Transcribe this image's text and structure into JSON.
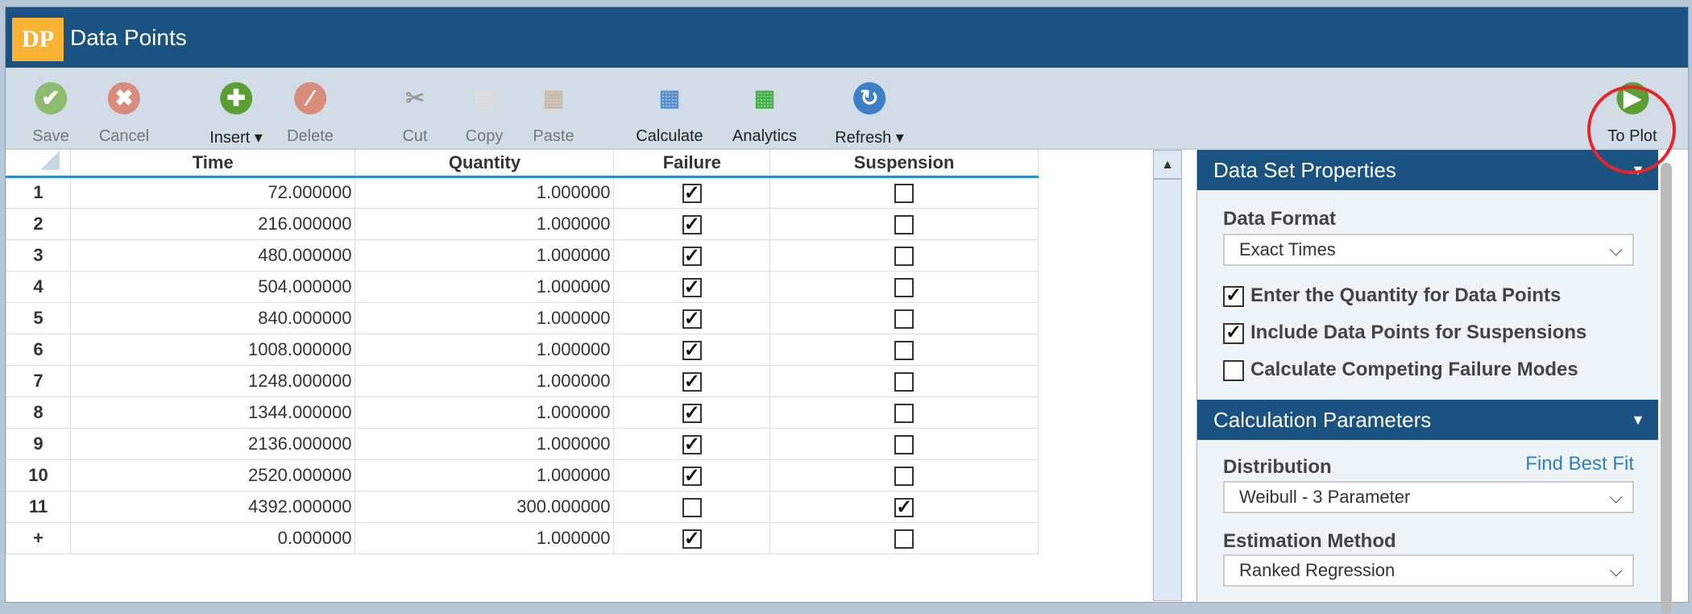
{
  "window": {
    "logo": "DP",
    "title": "Data Points"
  },
  "toolbar": [
    {
      "id": "save",
      "label": "Save",
      "icon": "check-circle-icon",
      "color": "#8dbb6e",
      "disabled": true,
      "glyph": "✔"
    },
    {
      "id": "cancel",
      "label": "Cancel",
      "icon": "x-circle-icon",
      "color": "#d98b7c",
      "disabled": true,
      "glyph": "✖"
    },
    {
      "id": "insert",
      "label": "Insert ▾",
      "icon": "plus-circle-icon",
      "color": "#5a9e34",
      "disabled": false,
      "glyph": "✚"
    },
    {
      "id": "delete",
      "label": "Delete",
      "icon": "minus-circle-icon",
      "color": "#d98b7c",
      "disabled": true,
      "glyph": "⁄"
    },
    {
      "id": "cut",
      "label": "Cut",
      "icon": "scissors-icon",
      "color": "#999",
      "disabled": true,
      "glyph": "✂"
    },
    {
      "id": "copy",
      "label": "Copy",
      "icon": "copy-icon",
      "color": "#ddd",
      "disabled": true,
      "glyph": "▤"
    },
    {
      "id": "paste",
      "label": "Paste",
      "icon": "clipboard-icon",
      "color": "#c9b9a8",
      "disabled": true,
      "glyph": "▦"
    },
    {
      "id": "calculate",
      "label": "Calculate",
      "icon": "calculator-icon",
      "color": "#5b8fc9",
      "disabled": false,
      "glyph": "▦"
    },
    {
      "id": "analytics",
      "label": "Analytics",
      "icon": "analytics-calculator-icon",
      "color": "#47b04b",
      "disabled": false,
      "glyph": "▦"
    },
    {
      "id": "refresh",
      "label": "Refresh ▾",
      "icon": "refresh-icon",
      "color": "#3d7fc4",
      "disabled": false,
      "glyph": "↻"
    },
    {
      "id": "to-plot",
      "label": "To Plot",
      "icon": "play-circle-icon",
      "color": "#5a9e34",
      "disabled": false,
      "glyph": "▶"
    }
  ],
  "table": {
    "columns": [
      "Time",
      "Quantity",
      "Failure",
      "Suspension"
    ],
    "rows": [
      {
        "n": "1",
        "time": "72.000000",
        "qty": "1.000000",
        "failure": true,
        "susp": false
      },
      {
        "n": "2",
        "time": "216.000000",
        "qty": "1.000000",
        "failure": true,
        "susp": false
      },
      {
        "n": "3",
        "time": "480.000000",
        "qty": "1.000000",
        "failure": true,
        "susp": false
      },
      {
        "n": "4",
        "time": "504.000000",
        "qty": "1.000000",
        "failure": true,
        "susp": false
      },
      {
        "n": "5",
        "time": "840.000000",
        "qty": "1.000000",
        "failure": true,
        "susp": false
      },
      {
        "n": "6",
        "time": "1008.000000",
        "qty": "1.000000",
        "failure": true,
        "susp": false
      },
      {
        "n": "7",
        "time": "1248.000000",
        "qty": "1.000000",
        "failure": true,
        "susp": false
      },
      {
        "n": "8",
        "time": "1344.000000",
        "qty": "1.000000",
        "failure": true,
        "susp": false
      },
      {
        "n": "9",
        "time": "2136.000000",
        "qty": "1.000000",
        "failure": true,
        "susp": false
      },
      {
        "n": "10",
        "time": "2520.000000",
        "qty": "1.000000",
        "failure": true,
        "susp": false
      },
      {
        "n": "11",
        "time": "4392.000000",
        "qty": "300.000000",
        "failure": false,
        "susp": true
      },
      {
        "n": "+",
        "time": "0.000000",
        "qty": "1.000000",
        "failure": true,
        "susp": false
      }
    ]
  },
  "panel": {
    "dsp_title": "Data Set Properties",
    "data_format_label": "Data Format",
    "data_format_value": "Exact Times",
    "opt1": "Enter the Quantity for Data Points",
    "opt1_checked": true,
    "opt2": "Include Data Points for Suspensions",
    "opt2_checked": true,
    "opt3": "Calculate Competing Failure Modes",
    "opt3_checked": false,
    "cp_title": "Calculation Parameters",
    "distribution_label": "Distribution",
    "find_best_fit": "Find Best Fit",
    "distribution_value": "Weibull - 3 Parameter",
    "estimation_label": "Estimation Method",
    "estimation_value": "Ranked Regression"
  }
}
